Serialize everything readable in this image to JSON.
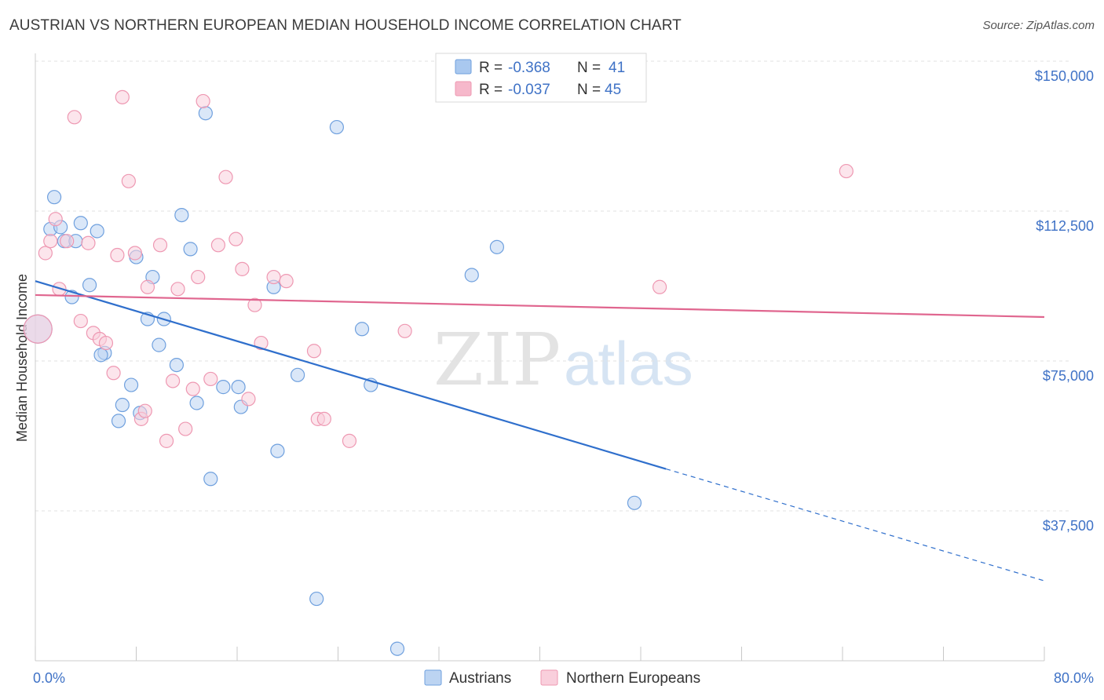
{
  "title": "AUSTRIAN VS NORTHERN EUROPEAN MEDIAN HOUSEHOLD INCOME CORRELATION CHART",
  "source": "Source: ZipAtlas.com",
  "watermark": {
    "zip": "ZIP",
    "atlas": "atlas"
  },
  "legend": {
    "rows": [
      {
        "r_label": "R =",
        "r_value": "-0.368",
        "n_label": "N =",
        "n_value": "41",
        "color": "#a9c8ef"
      },
      {
        "r_label": "R =",
        "r_value": "-0.037",
        "n_label": "N =",
        "n_value": "45",
        "color": "#f6b8cb"
      }
    ]
  },
  "chart_data": {
    "type": "scatter",
    "ylabel": "Median Household Income",
    "xlim": [
      0,
      80
    ],
    "ylim": [
      0,
      150000
    ],
    "x_tick_labels": [
      "0.0%",
      "80.0%"
    ],
    "y_ticks": [
      {
        "value": 150000,
        "label": "$150,000"
      },
      {
        "value": 112500,
        "label": "$112,500"
      },
      {
        "value": 75000,
        "label": "$75,000"
      },
      {
        "value": 37500,
        "label": "$37,500"
      }
    ],
    "grid": true,
    "series": [
      {
        "name": "Austrians",
        "color": "#6fa0de",
        "fill": "#bcd4f2",
        "trend": {
          "x0": 0,
          "y0": 95000,
          "x1": 50,
          "y1": 48000,
          "x_dash_end": 80,
          "y_dash_end": 20000
        },
        "points": [
          [
            0.2,
            83000
          ],
          [
            1.5,
            116000
          ],
          [
            1.2,
            108000
          ],
          [
            2.0,
            108500
          ],
          [
            2.3,
            105000
          ],
          [
            3.2,
            105000
          ],
          [
            3.6,
            109500
          ],
          [
            4.9,
            107500
          ],
          [
            4.3,
            94000
          ],
          [
            2.9,
            91000
          ],
          [
            5.5,
            77000
          ],
          [
            5.2,
            76500
          ],
          [
            6.6,
            60000
          ],
          [
            7.6,
            69000
          ],
          [
            6.9,
            64000
          ],
          [
            8.3,
            62000
          ],
          [
            8.9,
            85500
          ],
          [
            9.3,
            96000
          ],
          [
            9.8,
            79000
          ],
          [
            10.2,
            85500
          ],
          [
            11.6,
            111500
          ],
          [
            11.2,
            74000
          ],
          [
            12.3,
            103000
          ],
          [
            12.8,
            64500
          ],
          [
            13.5,
            137000
          ],
          [
            13.9,
            45500
          ],
          [
            14.9,
            68500
          ],
          [
            16.3,
            63500
          ],
          [
            16.1,
            68500
          ],
          [
            18.9,
            93500
          ],
          [
            19.2,
            52500
          ],
          [
            20.8,
            71500
          ],
          [
            22.3,
            15500
          ],
          [
            23.9,
            133500
          ],
          [
            25.9,
            83000
          ],
          [
            26.6,
            69000
          ],
          [
            28.7,
            3000
          ],
          [
            34.6,
            96500
          ],
          [
            36.6,
            103500
          ],
          [
            47.5,
            39500
          ],
          [
            8.0,
            101000
          ]
        ]
      },
      {
        "name": "Northern Europeans",
        "color": "#ee98b2",
        "fill": "#f9cfdc",
        "trend": {
          "x0": 0,
          "y0": 91500,
          "x1": 80,
          "y1": 86000
        },
        "points": [
          [
            0.2,
            83000
          ],
          [
            0.8,
            102000
          ],
          [
            1.6,
            110500
          ],
          [
            1.2,
            105000
          ],
          [
            2.5,
            105000
          ],
          [
            1.9,
            93000
          ],
          [
            3.1,
            136000
          ],
          [
            3.6,
            85000
          ],
          [
            4.2,
            104500
          ],
          [
            4.6,
            82000
          ],
          [
            5.1,
            80500
          ],
          [
            5.6,
            79500
          ],
          [
            6.2,
            72000
          ],
          [
            6.5,
            101500
          ],
          [
            6.9,
            141000
          ],
          [
            7.4,
            120000
          ],
          [
            7.9,
            102000
          ],
          [
            8.4,
            60500
          ],
          [
            8.9,
            93500
          ],
          [
            8.7,
            62500
          ],
          [
            9.9,
            104000
          ],
          [
            10.4,
            55000
          ],
          [
            10.9,
            70000
          ],
          [
            11.3,
            93000
          ],
          [
            11.9,
            58000
          ],
          [
            12.5,
            68000
          ],
          [
            12.9,
            96000
          ],
          [
            13.3,
            140000
          ],
          [
            13.9,
            70500
          ],
          [
            14.5,
            104000
          ],
          [
            15.1,
            121000
          ],
          [
            15.9,
            105500
          ],
          [
            16.4,
            98000
          ],
          [
            16.9,
            65500
          ],
          [
            17.4,
            89000
          ],
          [
            17.9,
            79500
          ],
          [
            18.9,
            96000
          ],
          [
            19.9,
            95000
          ],
          [
            22.1,
            77500
          ],
          [
            22.4,
            60500
          ],
          [
            22.9,
            60500
          ],
          [
            24.9,
            55000
          ],
          [
            29.3,
            82500
          ],
          [
            49.5,
            93500
          ],
          [
            64.3,
            122500
          ]
        ]
      }
    ]
  }
}
